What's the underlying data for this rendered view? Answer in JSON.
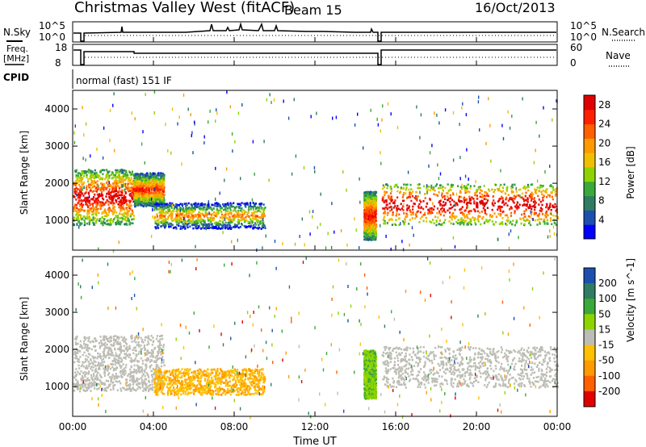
{
  "header": {
    "station": "Christmas Valley West (fitACF)",
    "beam": "Beam 15",
    "date": "16/Oct/2013"
  },
  "side_labels": {
    "nsky": "N.Sky",
    "nsearch": "N.Search",
    "freq_top": "Freq.",
    "freq_unit": "[MHz]",
    "nave": "Nave",
    "cpid": "CPID",
    "cpid_text": "normal (fast) 151 IF"
  },
  "noise_axis": {
    "top_left": "10^5",
    "bottom_left": "10^0",
    "top_right": "10^5",
    "bottom_right": "10^0"
  },
  "freq_axis": {
    "left": [
      "18",
      "8"
    ],
    "right": [
      "60",
      "0"
    ]
  },
  "x_axis": {
    "label": "Time UT",
    "ticks": [
      "00:00",
      "04:00",
      "08:00",
      "12:00",
      "16:00",
      "20:00",
      "00:00"
    ]
  },
  "range_axis": {
    "label": "Slant Range [km]",
    "ticks": [
      "1000",
      "2000",
      "3000",
      "4000"
    ]
  },
  "colors": {
    "power": [
      "#0000ff",
      "#1d4fb0",
      "#2e7d62",
      "#3aa83a",
      "#8ed400",
      "#f0c000",
      "#ff9a00",
      "#ff6000",
      "#ff2000",
      "#e00000"
    ],
    "velocity_ground": "#bdbdb5"
  },
  "chart_data": [
    {
      "type": "heatmap",
      "title": "Power",
      "colorbar_label": "Power [dB]",
      "colorbar_ticks": [
        "4",
        "8",
        "12",
        "16",
        "20",
        "24",
        "28"
      ],
      "range": [
        0,
        30
      ],
      "xlabel": "Time UT",
      "ylabel": "Slant Range [km]",
      "ylim": [
        200,
        4500
      ],
      "xlim_hours": [
        0,
        24
      ],
      "regions": [
        {
          "t": [
            0.0,
            3.0
          ],
          "r": [
            900,
            2400
          ],
          "power": 22
        },
        {
          "t": [
            3.0,
            4.5
          ],
          "r": [
            1400,
            2300
          ],
          "power": 18
        },
        {
          "t": [
            4.0,
            9.5
          ],
          "r": [
            800,
            1500
          ],
          "power": 14
        },
        {
          "t": [
            14.4,
            15.0
          ],
          "r": [
            500,
            1800
          ],
          "power": 20
        },
        {
          "t": [
            15.3,
            24.0
          ],
          "r": [
            900,
            2000
          ],
          "power": 24
        }
      ]
    },
    {
      "type": "heatmap",
      "title": "Velocity",
      "colorbar_label": "Velocity [m s^-1]",
      "colorbar_ticks": [
        "200",
        "100",
        "50",
        "15",
        "-15",
        "-50",
        "-100",
        "-200"
      ],
      "range": [
        -200,
        200
      ],
      "xlabel": "Time UT",
      "ylabel": "Slant Range [km]",
      "ylim": [
        200,
        4500
      ],
      "xlim_hours": [
        0,
        24
      ],
      "regions": [
        {
          "t": [
            0.0,
            4.5
          ],
          "r": [
            900,
            2400
          ],
          "velocity": 0
        },
        {
          "t": [
            4.0,
            9.5
          ],
          "r": [
            800,
            1500
          ],
          "velocity": -60
        },
        {
          "t": [
            14.4,
            15.0
          ],
          "r": [
            700,
            2000
          ],
          "velocity": 60
        },
        {
          "t": [
            15.3,
            24.0
          ],
          "r": [
            1000,
            2100
          ],
          "velocity": 0
        }
      ]
    }
  ]
}
